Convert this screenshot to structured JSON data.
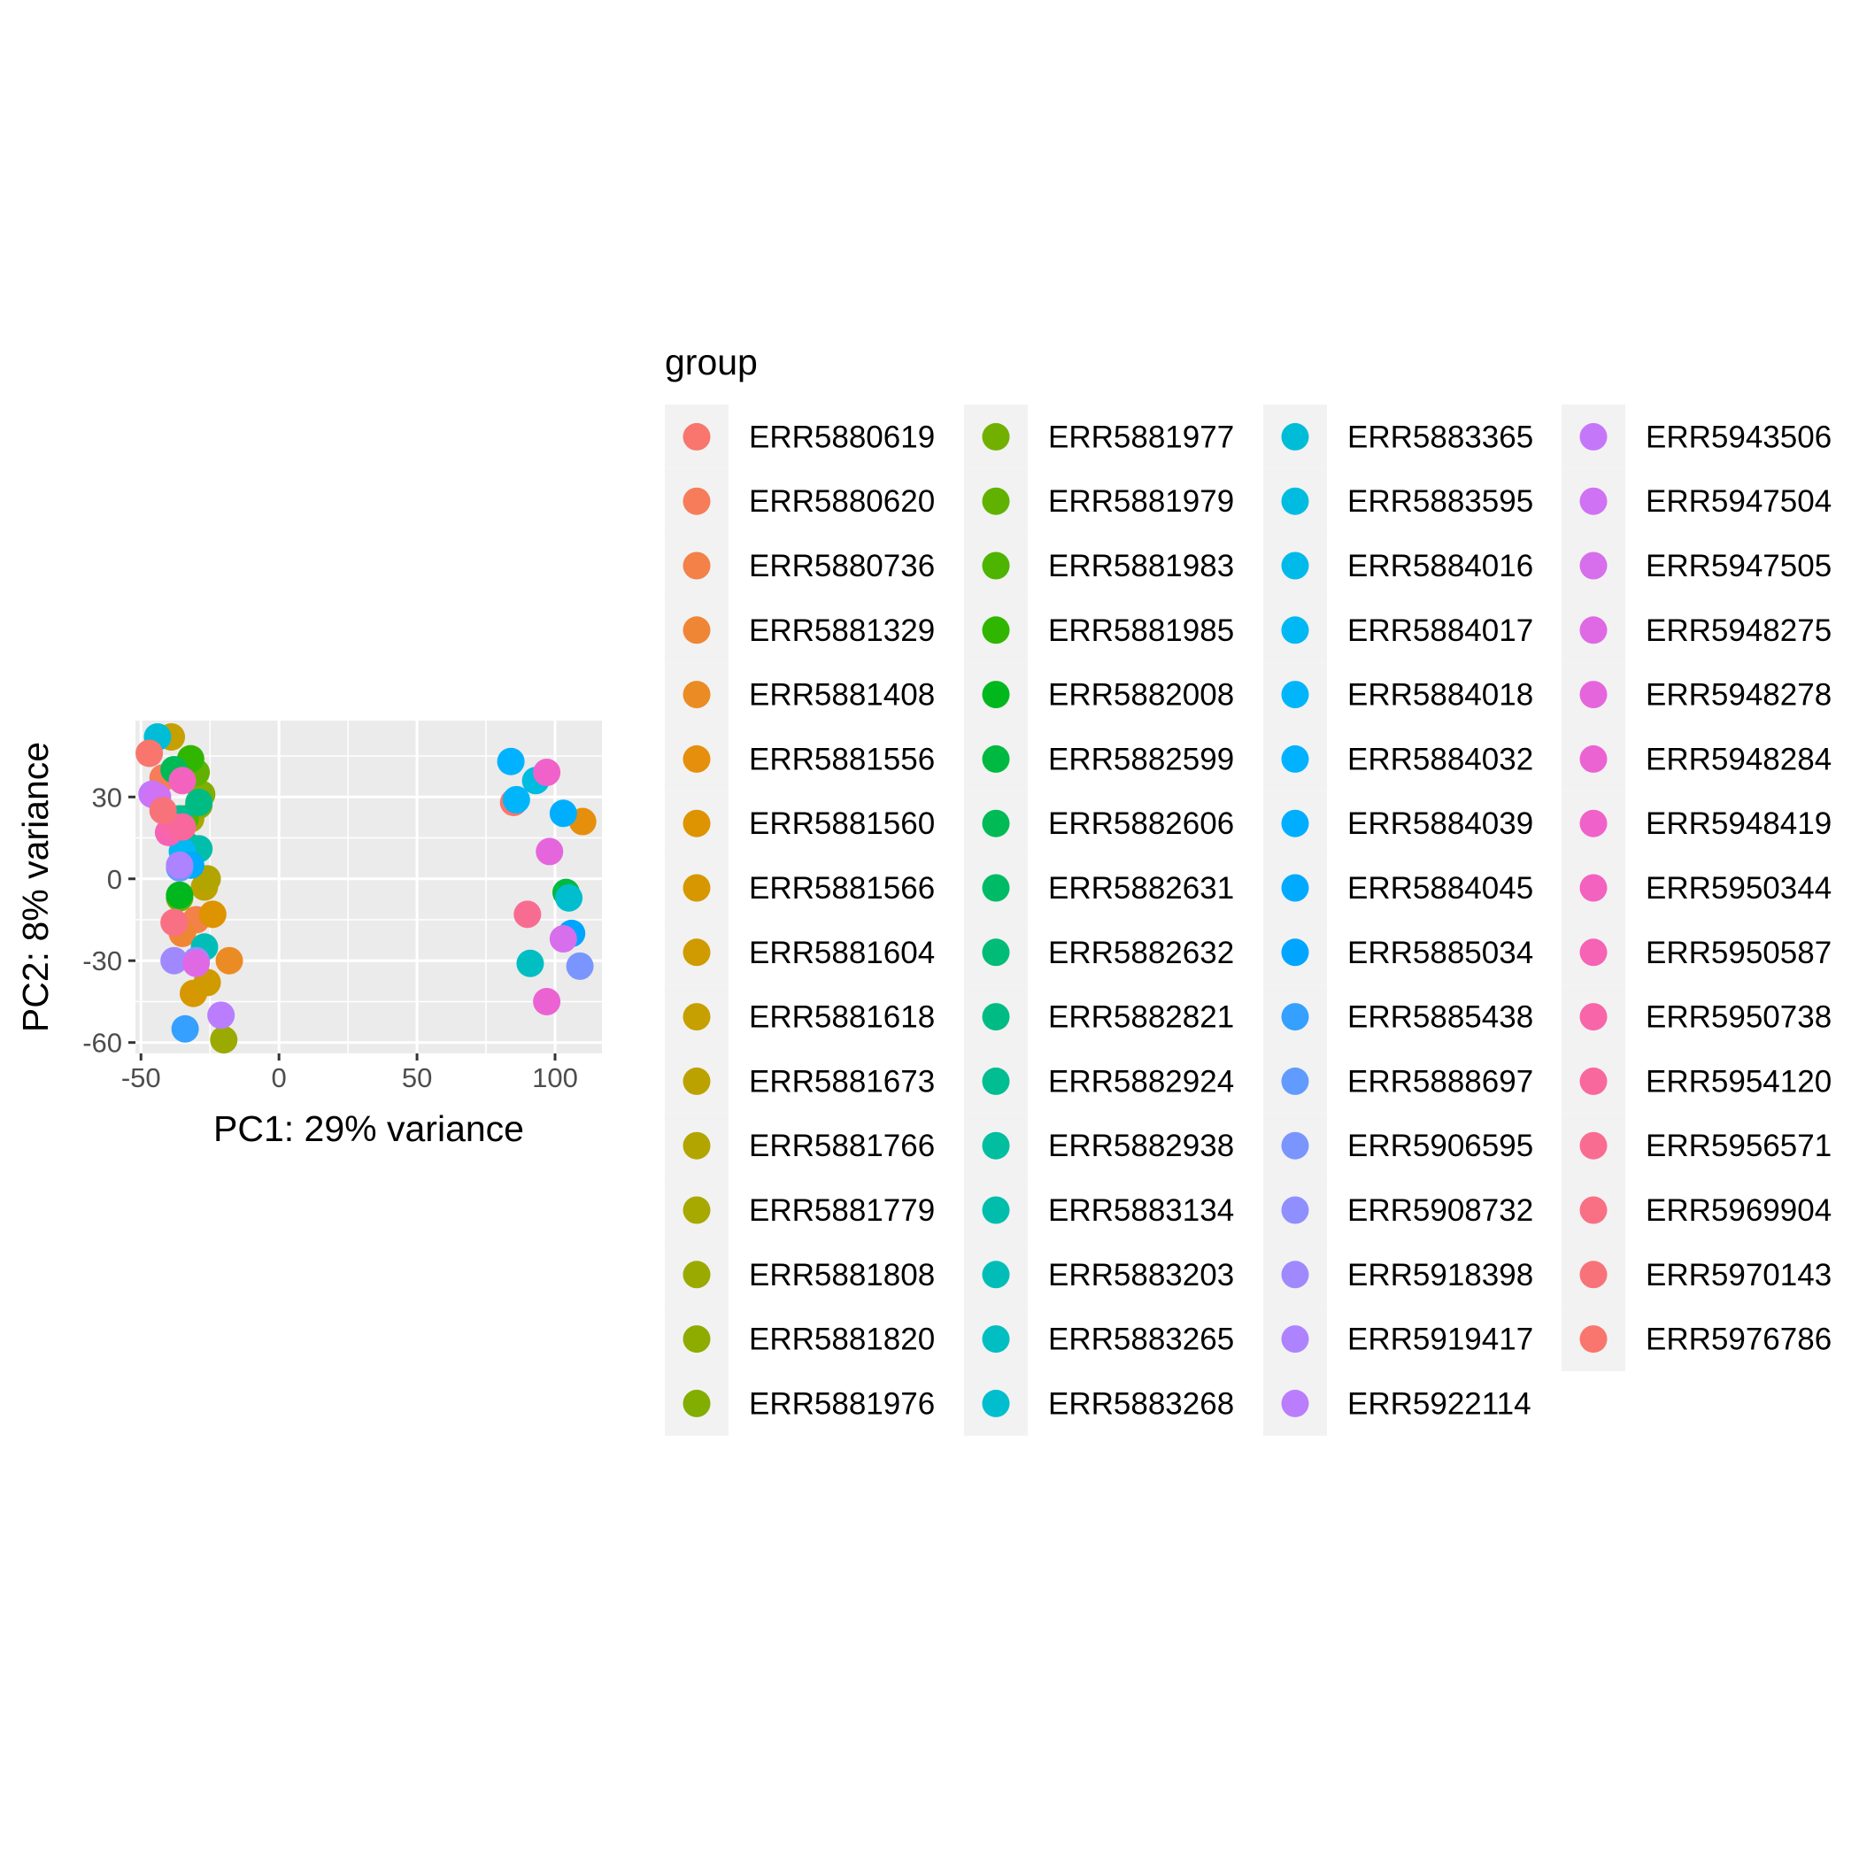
{
  "chart_data": {
    "type": "scatter",
    "xlabel": "PC1: 29% variance",
    "ylabel": "PC2: 8% variance",
    "xlim": [
      -52,
      117
    ],
    "ylim": [
      -64,
      58
    ],
    "x_ticks": [
      -50,
      0,
      50,
      100
    ],
    "y_ticks": [
      -60,
      -30,
      0,
      30
    ],
    "x_tick_labels": [
      "-50",
      "0",
      "50",
      "100"
    ],
    "y_tick_labels": [
      "-60",
      "-30",
      "0",
      "30"
    ],
    "grid": true,
    "panel_background": "#EBEBEB",
    "legend": {
      "title": "group",
      "placement": "right",
      "columns": 4,
      "rows": 16,
      "key_background": "#F2F2F2"
    },
    "series": [
      {
        "name": "ERR5880619",
        "color": "#F8766D",
        "x": 85,
        "y": 28
      },
      {
        "name": "ERR5880620",
        "color": "#F67C5A",
        "x": -42,
        "y": 37
      },
      {
        "name": "ERR5880736",
        "color": "#F38148",
        "x": -30,
        "y": -15
      },
      {
        "name": "ERR5881329",
        "color": "#EF8636",
        "x": -35,
        "y": -20
      },
      {
        "name": "ERR5881408",
        "color": "#EB8B24",
        "x": -18,
        "y": -30
      },
      {
        "name": "ERR5881556",
        "color": "#E58F0C",
        "x": 110,
        "y": 21
      },
      {
        "name": "ERR5881560",
        "color": "#DE9300",
        "x": -24,
        "y": -13
      },
      {
        "name": "ERR5881566",
        "color": "#D79700",
        "x": -31,
        "y": -42
      },
      {
        "name": "ERR5881604",
        "color": "#CF9B00",
        "x": -26,
        "y": -38
      },
      {
        "name": "ERR5881618",
        "color": "#C69F00",
        "x": -39,
        "y": 52
      },
      {
        "name": "ERR5881673",
        "color": "#BCA200",
        "x": -27,
        "y": -3
      },
      {
        "name": "ERR5881766",
        "color": "#B2A500",
        "x": -26,
        "y": 0
      },
      {
        "name": "ERR5881779",
        "color": "#A7A800",
        "x": -32,
        "y": 22
      },
      {
        "name": "ERR5881808",
        "color": "#9BAA00",
        "x": -20,
        "y": -59
      },
      {
        "name": "ERR5881820",
        "color": "#8EAC00",
        "x": -29,
        "y": 27
      },
      {
        "name": "ERR5881976",
        "color": "#81AE00",
        "x": -28,
        "y": 31
      },
      {
        "name": "ERR5881977",
        "color": "#72B000",
        "x": -36,
        "y": -7
      },
      {
        "name": "ERR5881979",
        "color": "#61B200",
        "x": -30,
        "y": 39
      },
      {
        "name": "ERR5881983",
        "color": "#4DB400",
        "x": -34,
        "y": 22
      },
      {
        "name": "ERR5881985",
        "color": "#31B600",
        "x": -32,
        "y": 44
      },
      {
        "name": "ERR5882008",
        "color": "#00B81E",
        "x": -36,
        "y": -6
      },
      {
        "name": "ERR5882599",
        "color": "#00B940",
        "x": 104,
        "y": -5
      },
      {
        "name": "ERR5882606",
        "color": "#00BA55",
        "x": -38,
        "y": 40
      },
      {
        "name": "ERR5882631",
        "color": "#00BB66",
        "x": -35,
        "y": 14
      },
      {
        "name": "ERR5882632",
        "color": "#00BC76",
        "x": -33,
        "y": 12
      },
      {
        "name": "ERR5882821",
        "color": "#00BC84",
        "x": -29,
        "y": 28
      },
      {
        "name": "ERR5882924",
        "color": "#00BD92",
        "x": -36,
        "y": 22
      },
      {
        "name": "ERR5882938",
        "color": "#00BE9F",
        "x": -37,
        "y": 18
      },
      {
        "name": "ERR5883134",
        "color": "#00BEAB",
        "x": -29,
        "y": 11
      },
      {
        "name": "ERR5883203",
        "color": "#00BEB7",
        "x": -27,
        "y": -25
      },
      {
        "name": "ERR5883265",
        "color": "#00BEC2",
        "x": 91,
        "y": -31
      },
      {
        "name": "ERR5883268",
        "color": "#00BECD",
        "x": 105,
        "y": -7
      },
      {
        "name": "ERR5883365",
        "color": "#00BDD7",
        "x": -44,
        "y": 52
      },
      {
        "name": "ERR5883595",
        "color": "#00BCE1",
        "x": 93,
        "y": 36
      },
      {
        "name": "ERR5884016",
        "color": "#00BAEA",
        "x": -34,
        "y": 6
      },
      {
        "name": "ERR5884017",
        "color": "#00B8F3",
        "x": -35,
        "y": 10
      },
      {
        "name": "ERR5884018",
        "color": "#00B5FA",
        "x": 86,
        "y": 29
      },
      {
        "name": "ERR5884032",
        "color": "#00B2FF",
        "x": 84,
        "y": 43
      },
      {
        "name": "ERR5884039",
        "color": "#00AEFF",
        "x": 103,
        "y": 24
      },
      {
        "name": "ERR5884045",
        "color": "#00AAFF",
        "x": -32,
        "y": 5
      },
      {
        "name": "ERR5885034",
        "color": "#00A5FF",
        "x": 106,
        "y": -20
      },
      {
        "name": "ERR5885438",
        "color": "#35A0FF",
        "x": -34,
        "y": -55
      },
      {
        "name": "ERR5888697",
        "color": "#619BFF",
        "x": -36,
        "y": 4
      },
      {
        "name": "ERR5906595",
        "color": "#7B95FF",
        "x": 109,
        "y": -32
      },
      {
        "name": "ERR5908732",
        "color": "#8F8FFF",
        "x": -30,
        "y": -30
      },
      {
        "name": "ERR5918398",
        "color": "#A089FF",
        "x": -38,
        "y": -30
      },
      {
        "name": "ERR5919417",
        "color": "#AE83FF",
        "x": -36,
        "y": 5
      },
      {
        "name": "ERR5922114",
        "color": "#BA7DFE",
        "x": -21,
        "y": -50
      },
      {
        "name": "ERR5943506",
        "color": "#C577F9",
        "x": -46,
        "y": 31
      },
      {
        "name": "ERR5947504",
        "color": "#CF72F3",
        "x": -44,
        "y": 30
      },
      {
        "name": "ERR5947505",
        "color": "#D76EEC",
        "x": 103,
        "y": -22
      },
      {
        "name": "ERR5948275",
        "color": "#DF69E4",
        "x": -30,
        "y": -31
      },
      {
        "name": "ERR5948278",
        "color": "#E566DC",
        "x": 98,
        "y": 10
      },
      {
        "name": "ERR5948284",
        "color": "#EB63D3",
        "x": 97,
        "y": -45
      },
      {
        "name": "ERR5948419",
        "color": "#F062C9",
        "x": 97,
        "y": 39
      },
      {
        "name": "ERR5950344",
        "color": "#F362BF",
        "x": -35,
        "y": 36
      },
      {
        "name": "ERR5950587",
        "color": "#F663B4",
        "x": -40,
        "y": 17
      },
      {
        "name": "ERR5950738",
        "color": "#F865A9",
        "x": -38,
        "y": 19
      },
      {
        "name": "ERR5954120",
        "color": "#F9689D",
        "x": -35,
        "y": 19
      },
      {
        "name": "ERR5956571",
        "color": "#F96C91",
        "x": 90,
        "y": -13
      },
      {
        "name": "ERR5969904",
        "color": "#F97085",
        "x": -38,
        "y": -16
      },
      {
        "name": "ERR5970143",
        "color": "#F87379",
        "x": -42,
        "y": 25
      },
      {
        "name": "ERR5976786",
        "color": "#F8766D",
        "x": -47,
        "y": 46
      }
    ]
  }
}
